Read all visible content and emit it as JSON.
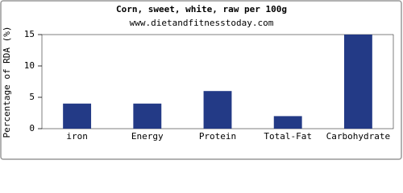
{
  "chart_data": {
    "type": "bar",
    "title": "Corn, sweet, white, raw per 100g",
    "subtitle": "www.dietandfitnesstoday.com",
    "y_label": "Percentage of RDA (%)",
    "categories": [
      "iron",
      "Energy",
      "Protein",
      "Total-Fat",
      "Carbohydrate"
    ],
    "values": [
      4,
      4,
      6,
      2,
      15
    ],
    "color": "#233a86",
    "ylim": [
      0,
      15
    ],
    "yticks": [
      0,
      5,
      10,
      15
    ],
    "grid": false
  }
}
